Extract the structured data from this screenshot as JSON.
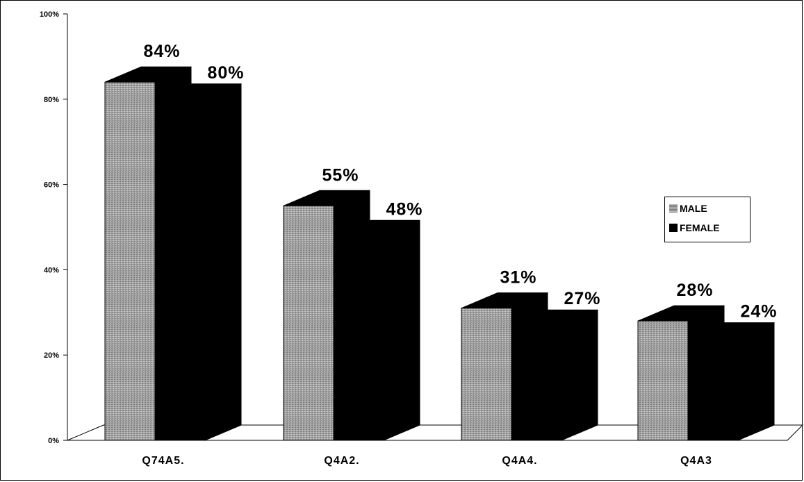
{
  "chart_data": {
    "type": "bar",
    "categories": [
      "Q74A5.",
      "Q4A2.",
      "Q4A4.",
      "Q4A3"
    ],
    "series": [
      {
        "name": "MALE",
        "values": [
          84,
          55,
          31,
          28
        ],
        "labels": [
          "84%",
          "55%",
          "31%",
          "28%"
        ]
      },
      {
        "name": "FEMALE",
        "values": [
          80,
          48,
          27,
          24
        ],
        "labels": [
          "80%",
          "48%",
          "27%",
          "24%"
        ]
      }
    ],
    "ylim": [
      0,
      100
    ],
    "yticks": [
      "0%",
      "20%",
      "40%",
      "60%",
      "80%",
      "100%"
    ],
    "ytick_values": [
      0,
      20,
      40,
      60,
      80,
      100
    ],
    "legend": "right",
    "grid": false,
    "style": "3d",
    "colors": {
      "male": "#a0a0a0",
      "female": "#000000"
    }
  }
}
